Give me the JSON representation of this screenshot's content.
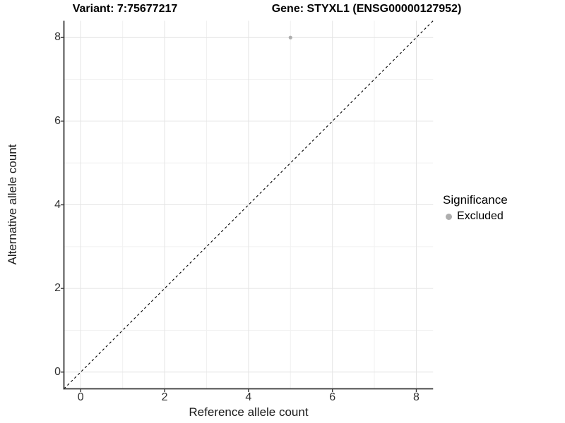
{
  "chart_data": {
    "type": "scatter",
    "title_left": "Variant: 7:75677217",
    "title_right": "Gene: STYXL1 (ENSG00000127952)",
    "xlabel": "Reference allele count",
    "ylabel": "Alternative allele count",
    "xlim": [
      -0.4,
      8.4
    ],
    "ylim": [
      -0.4,
      8.4
    ],
    "xticks": [
      0,
      2,
      4,
      6,
      8
    ],
    "yticks": [
      0,
      2,
      4,
      6,
      8
    ],
    "xminor": [
      1,
      3,
      5,
      7
    ],
    "yminor": [
      1,
      3,
      5,
      7
    ],
    "grid": "major+minor",
    "identity_line": {
      "style": "dashed",
      "color": "#000000",
      "from": [
        -0.4,
        -0.4
      ],
      "to": [
        8.4,
        8.4
      ]
    },
    "series": [
      {
        "name": "Excluded",
        "color": "#aeaeae",
        "points": [
          [
            5,
            8
          ]
        ]
      }
    ],
    "legend": {
      "title": "Significance",
      "position": "right"
    }
  },
  "colors": {
    "background": "#ffffff",
    "grid_major": "#e4e4e4",
    "grid_minor": "#f1f1f1",
    "axis_line": "#383838",
    "tick_text": "#303030"
  }
}
